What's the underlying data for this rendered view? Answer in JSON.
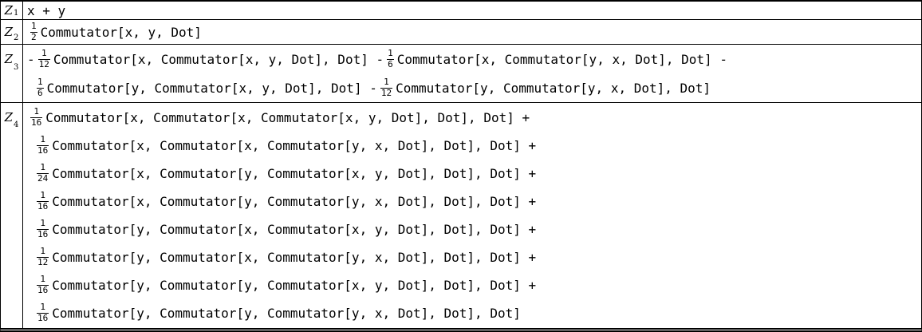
{
  "colors": {
    "background": "#ffffff",
    "text": "#000000",
    "border": "#000000"
  },
  "table": {
    "description": "Grid of Baker-Campbell-Hausdorff series terms",
    "rows": [
      {
        "label": "Z",
        "subscript": "1",
        "lines": [
          [
            {
              "t": "text",
              "v": "x + y"
            }
          ]
        ]
      },
      {
        "label": "Z",
        "subscript": "2",
        "lines": [
          [
            {
              "t": "frac",
              "n": "1",
              "d": "2"
            },
            {
              "t": "text",
              "v": "Commutator[x, y, Dot]"
            }
          ]
        ]
      },
      {
        "label": "Z",
        "subscript": "3",
        "lines": [
          [
            {
              "t": "text",
              "v": "-"
            },
            {
              "t": "frac",
              "n": "1",
              "d": "12"
            },
            {
              "t": "text",
              "v": "Commutator[x, Commutator[x, y, Dot], Dot] -"
            },
            {
              "t": "frac",
              "n": "1",
              "d": "6"
            },
            {
              "t": "text",
              "v": "Commutator[x, Commutator[y, x, Dot], Dot] -"
            }
          ],
          [
            {
              "t": "frac",
              "n": "1",
              "d": "6"
            },
            {
              "t": "text",
              "v": "Commutator[y, Commutator[x, y, Dot], Dot] -"
            },
            {
              "t": "frac",
              "n": "1",
              "d": "12"
            },
            {
              "t": "text",
              "v": "Commutator[y, Commutator[y, x, Dot], Dot]"
            }
          ]
        ]
      },
      {
        "label": "Z",
        "subscript": "4",
        "lines": [
          [
            {
              "t": "frac",
              "n": "1",
              "d": "16"
            },
            {
              "t": "text",
              "v": "Commutator[x, Commutator[x, Commutator[x, y, Dot], Dot], Dot] +"
            }
          ],
          [
            {
              "t": "frac",
              "n": "1",
              "d": "16"
            },
            {
              "t": "text",
              "v": "Commutator[x, Commutator[x, Commutator[y, x, Dot], Dot], Dot] +"
            }
          ],
          [
            {
              "t": "frac",
              "n": "1",
              "d": "24"
            },
            {
              "t": "text",
              "v": "Commutator[x, Commutator[y, Commutator[x, y, Dot], Dot], Dot] +"
            }
          ],
          [
            {
              "t": "frac",
              "n": "1",
              "d": "16"
            },
            {
              "t": "text",
              "v": "Commutator[x, Commutator[y, Commutator[y, x, Dot], Dot], Dot] +"
            }
          ],
          [
            {
              "t": "frac",
              "n": "1",
              "d": "16"
            },
            {
              "t": "text",
              "v": "Commutator[y, Commutator[x, Commutator[x, y, Dot], Dot], Dot] +"
            }
          ],
          [
            {
              "t": "frac",
              "n": "1",
              "d": "12"
            },
            {
              "t": "text",
              "v": "Commutator[y, Commutator[x, Commutator[y, x, Dot], Dot], Dot] +"
            }
          ],
          [
            {
              "t": "frac",
              "n": "1",
              "d": "16"
            },
            {
              "t": "text",
              "v": "Commutator[y, Commutator[y, Commutator[x, y, Dot], Dot], Dot] +"
            }
          ],
          [
            {
              "t": "frac",
              "n": "1",
              "d": "16"
            },
            {
              "t": "text",
              "v": "Commutator[y, Commutator[y, Commutator[y, x, Dot], Dot], Dot]"
            }
          ]
        ]
      }
    ]
  }
}
